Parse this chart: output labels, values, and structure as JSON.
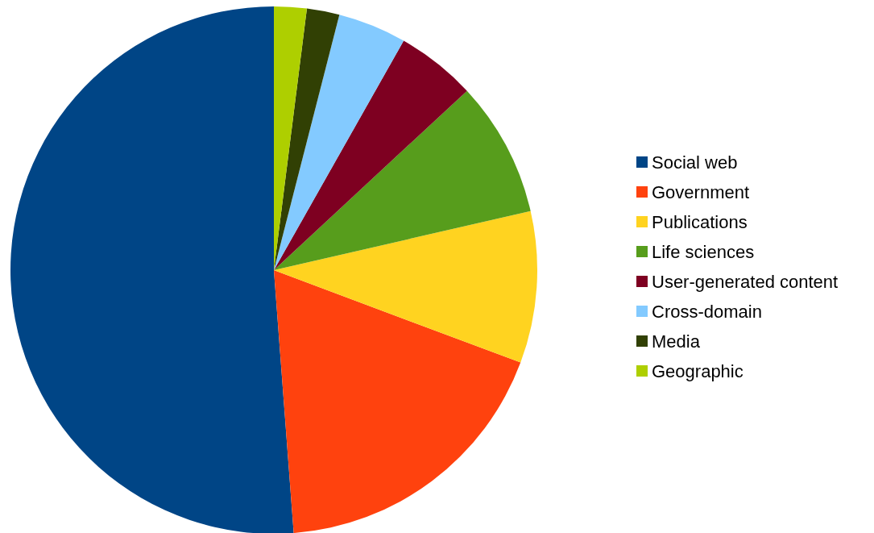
{
  "chart_data": {
    "type": "pie",
    "categories": [
      "Social web",
      "Government",
      "Publications",
      "Life sciences",
      "User-generated content",
      "Cross-domain",
      "Media",
      "Geographic"
    ],
    "values": [
      51.2,
      18.1,
      9.3,
      8.3,
      4.9,
      4.2,
      2.0,
      2.0
    ],
    "colors": [
      "#004586",
      "#ff420e",
      "#ffd320",
      "#579d1c",
      "#7e0021",
      "#83caff",
      "#314004",
      "#aecf00"
    ],
    "legend": "right"
  }
}
